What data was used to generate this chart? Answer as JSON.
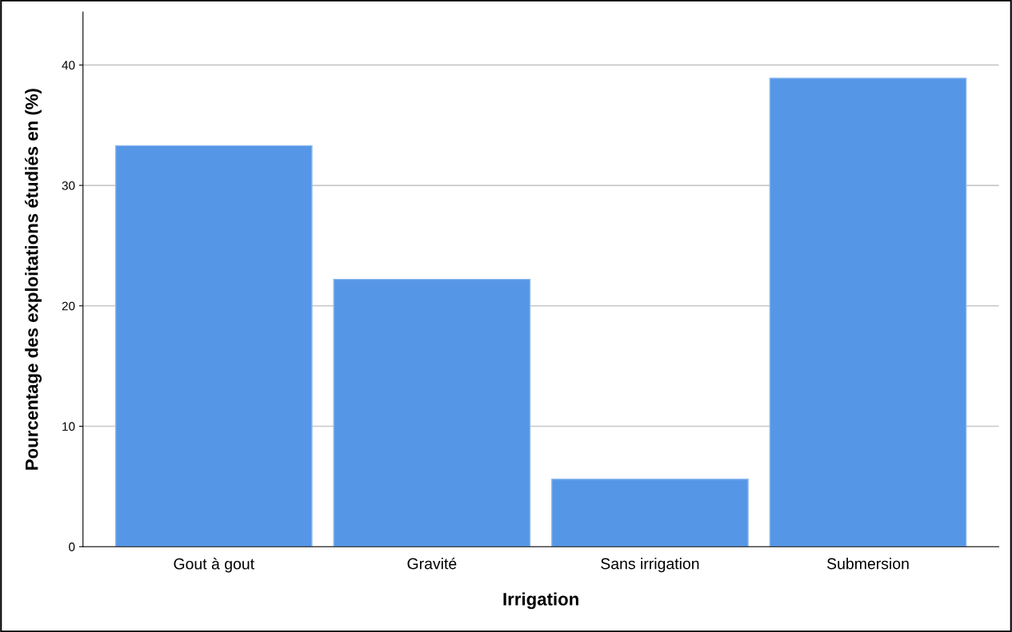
{
  "chart_data": {
    "type": "bar",
    "xlabel": "Irrigation",
    "ylabel": "Pourcentage des exploitations étudiés en (%)",
    "categories": [
      "Gout à gout",
      "Gravité",
      "Sans irrigation",
      "Submersion"
    ],
    "values": [
      33.3,
      22.2,
      5.6,
      38.9
    ],
    "color": "#5596e6",
    "ylim": [
      0,
      44.4
    ],
    "yticks": [
      0,
      10,
      20,
      30,
      40
    ],
    "grid": "y",
    "legend": false
  }
}
